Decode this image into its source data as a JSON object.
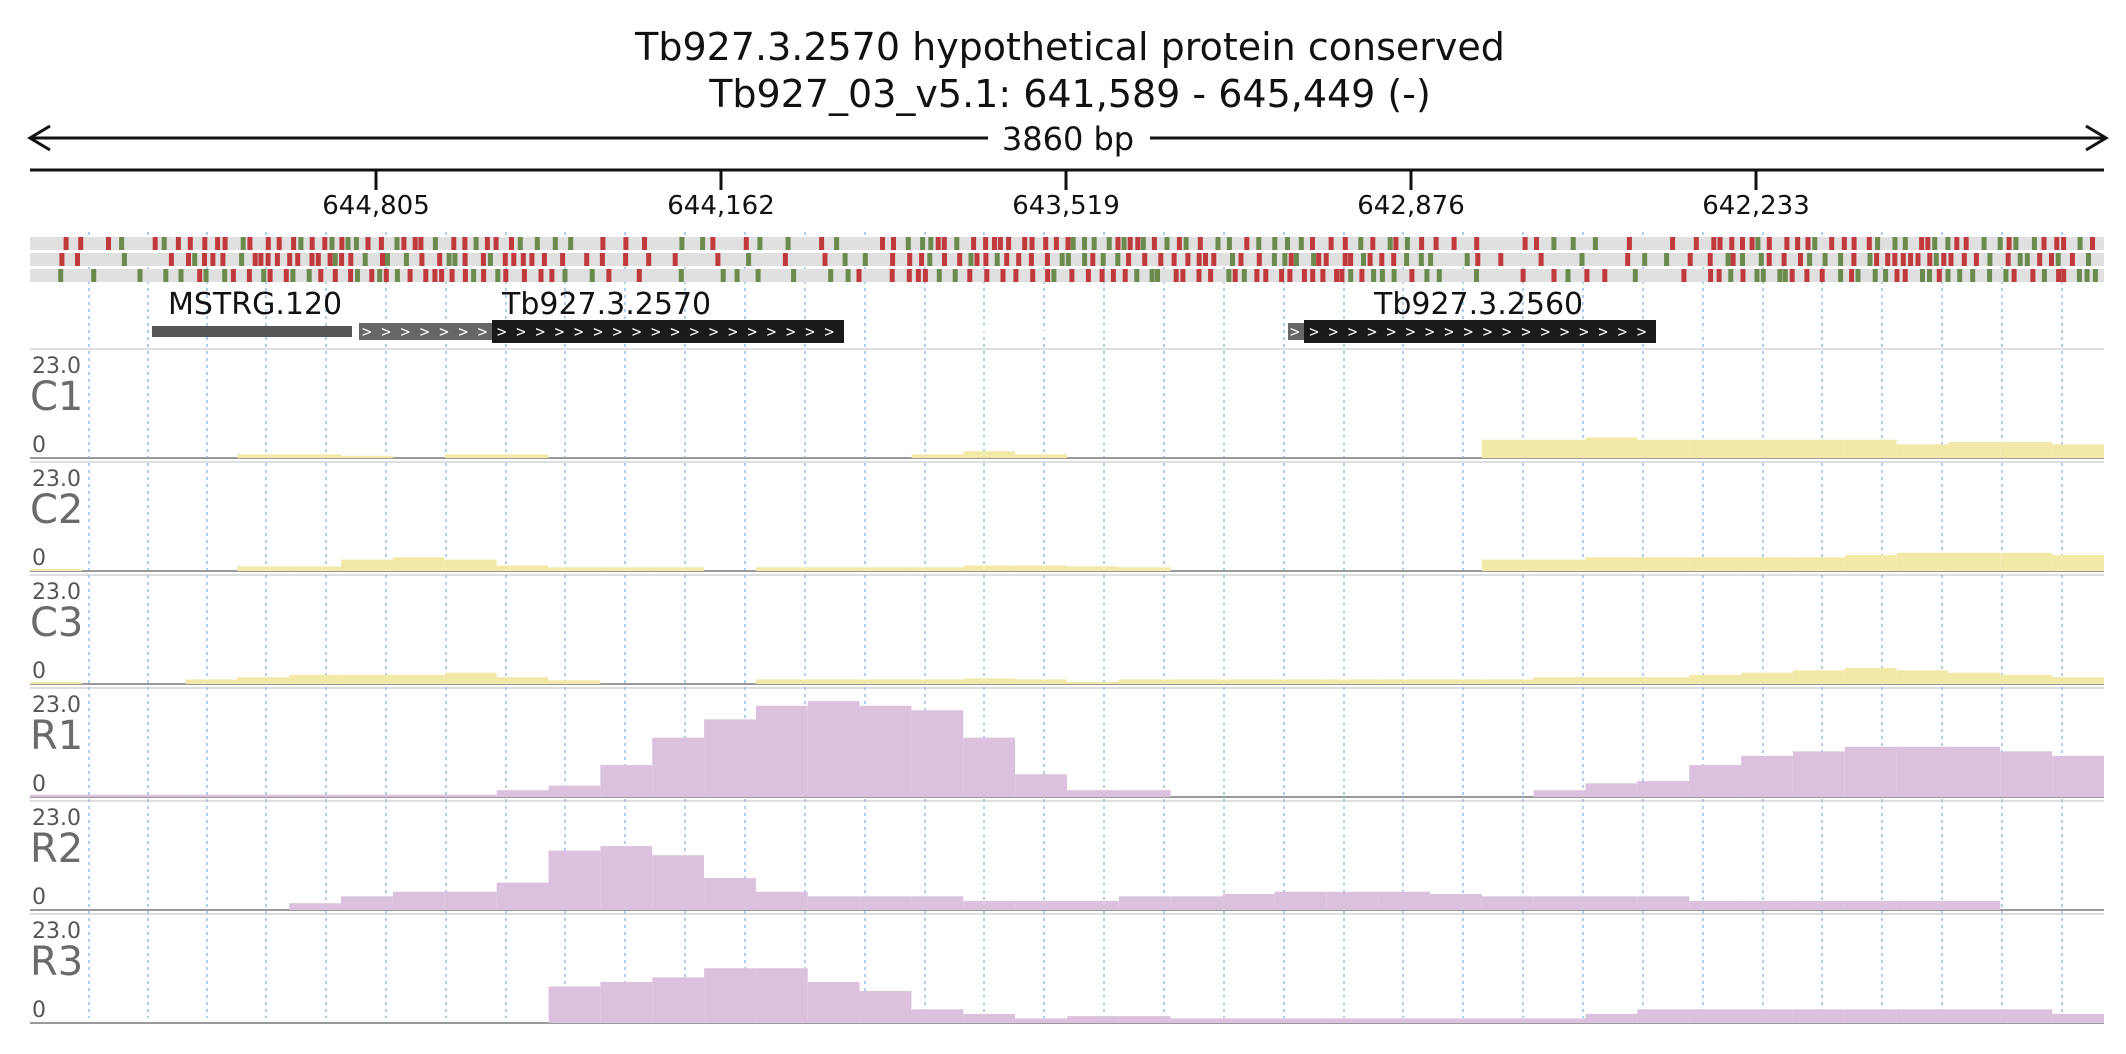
{
  "title": {
    "line1": "Tb927.3.2570  hypothetical protein  conserved",
    "line2": "Tb927_03_v5.1: 641,589 - 645,449 (-)"
  },
  "span_label": "3860 bp",
  "ruler": {
    "ticks": [
      "644,805",
      "644,162",
      "643,519",
      "642,876",
      "642,233"
    ]
  },
  "genes": [
    {
      "label": "MSTRG.120"
    },
    {
      "label": "Tb927.3.2570"
    },
    {
      "label": "Tb927.3.2560"
    }
  ],
  "colors": {
    "conserved": "#f2e9a8",
    "reads": "#dcc1df",
    "variant_red": "#c0393d",
    "variant_green": "#6b8a4e",
    "gene_block": "#1a1a1a",
    "grid": "#86b4e0"
  },
  "chart_data": {
    "type": "area",
    "x_axis": "genomic position (reverse strand, 645,449 to 641,589)",
    "ylim": [
      0,
      23.0
    ],
    "scale_top": "23.0",
    "scale_bottom": "0",
    "bins": 40,
    "tracks": [
      {
        "name": "C1",
        "kind": "C",
        "values": [
          0,
          0,
          0,
          0,
          0.8,
          0.8,
          0.5,
          0,
          0.8,
          0.8,
          0,
          0,
          0,
          0,
          0,
          0,
          0,
          0.8,
          1.5,
          0.8,
          0,
          0,
          0,
          0,
          0,
          0,
          0,
          0,
          4,
          4,
          4.5,
          4,
          4,
          4,
          4,
          4,
          3,
          3.5,
          3.5,
          3
        ]
      },
      {
        "name": "C2",
        "kind": "C",
        "values": [
          0.4,
          0,
          0,
          0,
          1,
          1,
          2.5,
          3,
          2.5,
          1.2,
          0.8,
          0.8,
          0.8,
          0,
          0.8,
          0.8,
          0.8,
          0.8,
          1.2,
          1.2,
          1,
          0.8,
          0,
          0,
          0,
          0,
          0,
          0,
          2.5,
          2.5,
          3,
          3,
          3,
          3,
          3,
          3.5,
          4,
          4,
          4,
          3.5
        ]
      },
      {
        "name": "C3",
        "kind": "C",
        "values": [
          0.5,
          0,
          0,
          1,
          1.5,
          2,
          2,
          2,
          2.5,
          1.5,
          0.8,
          0,
          0,
          0,
          1,
          1,
          1,
          1,
          1.2,
          1,
          0.5,
          1,
          1,
          1,
          1,
          1,
          1,
          1,
          1,
          1.5,
          1.5,
          1.5,
          2,
          2.5,
          3,
          3.5,
          3,
          2.5,
          2,
          1.5
        ]
      },
      {
        "name": "R1",
        "kind": "R",
        "values": [
          0.5,
          0.5,
          0.5,
          0.5,
          0.5,
          0.5,
          0.5,
          0.5,
          0.5,
          1.5,
          2.5,
          7,
          13,
          17,
          20,
          21,
          20,
          19,
          13,
          5,
          1.5,
          1.5,
          0,
          0,
          0,
          0,
          0,
          0,
          0,
          1.5,
          3,
          3.5,
          7,
          9,
          10,
          11,
          11,
          11,
          10,
          9
        ]
      },
      {
        "name": "R2",
        "kind": "R",
        "values": [
          0,
          0,
          0,
          0,
          0,
          1.5,
          3,
          4,
          4,
          6,
          13,
          14,
          12,
          7,
          4,
          3,
          3,
          3,
          2,
          2,
          2,
          3,
          3,
          3.5,
          4,
          4,
          4,
          3.5,
          3,
          3,
          3,
          3,
          2,
          2,
          2,
          2,
          2,
          2,
          0,
          0
        ]
      },
      {
        "name": "R3",
        "kind": "R",
        "values": [
          0,
          0,
          0,
          0,
          0,
          0,
          0,
          0,
          0,
          0,
          8,
          9,
          10,
          12,
          12,
          9,
          7,
          3,
          2,
          1,
          1.5,
          1.5,
          1,
          1,
          1,
          1,
          1,
          1,
          1,
          1,
          2,
          3,
          3,
          3,
          3,
          3,
          3,
          3,
          3,
          2
        ]
      }
    ]
  }
}
